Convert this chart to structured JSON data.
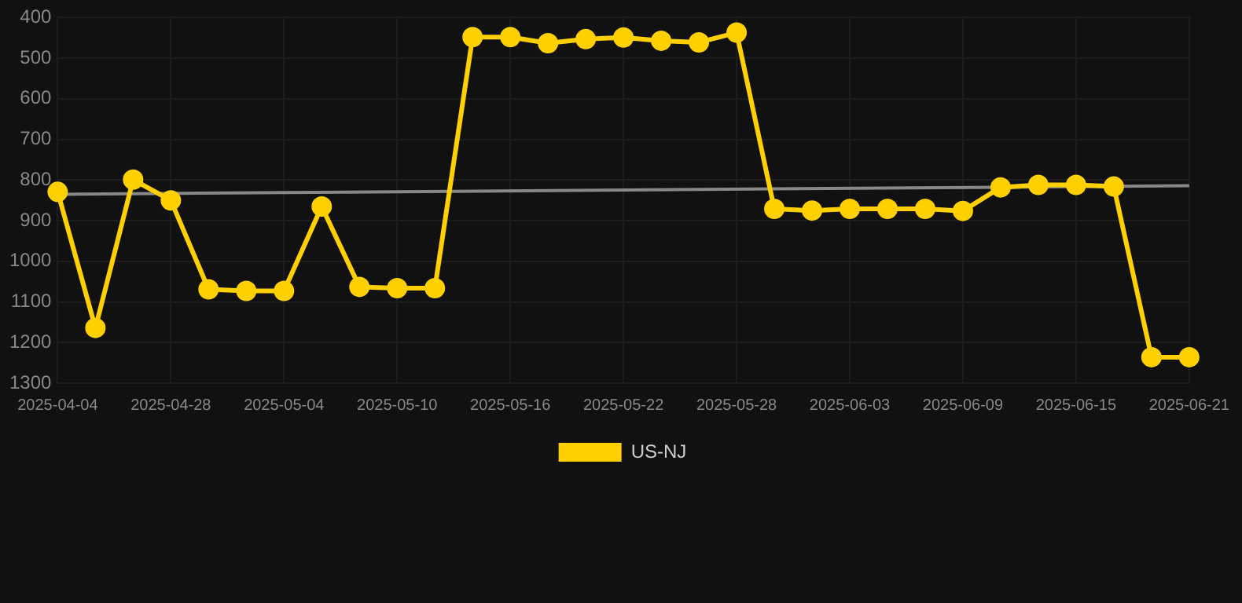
{
  "chart_data": {
    "type": "line",
    "categories": [
      "2025-04-04",
      null,
      null,
      "2025-04-28",
      null,
      null,
      "2025-05-04",
      null,
      null,
      "2025-05-10",
      null,
      null,
      "2025-05-16",
      null,
      null,
      "2025-05-22",
      null,
      null,
      "2025-05-28",
      null,
      null,
      "2025-06-03",
      null,
      null,
      "2025-06-09",
      null,
      null,
      "2025-06-15",
      null,
      null,
      "2025-06-21"
    ],
    "series": [
      {
        "name": "US-NJ",
        "color": "#ffd000",
        "values": [
          829,
          1164,
          799,
          850,
          1069,
          1073,
          1073,
          865,
          1063,
          1066,
          1066,
          448,
          448,
          463,
          453,
          449,
          457,
          461,
          437,
          871,
          875,
          871,
          871,
          871,
          876,
          818,
          812,
          812,
          816,
          1236,
          1236
        ]
      },
      {
        "type": "line",
        "color": "#888888",
        "marker": "none",
        "values": [
          835,
          null,
          null,
          null,
          null,
          null,
          null,
          null,
          null,
          null,
          null,
          null,
          null,
          null,
          null,
          null,
          null,
          null,
          null,
          null,
          null,
          null,
          null,
          null,
          null,
          null,
          null,
          null,
          null,
          null,
          814
        ]
      }
    ],
    "ylim": [
      1300,
      400
    ],
    "yticks": [
      400,
      500,
      600,
      700,
      800,
      900,
      1000,
      1100,
      1200,
      1300
    ],
    "grid": true,
    "legend": "bottom",
    "marker": "circle",
    "line_style": "solid"
  }
}
